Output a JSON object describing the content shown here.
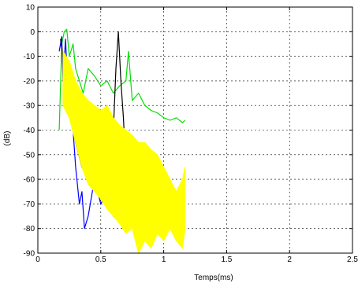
{
  "chart_data": {
    "type": "line",
    "title": "",
    "xlabel": "Temps(ms)",
    "ylabel": "(dB)",
    "xlim": [
      0,
      2.5
    ],
    "ylim": [
      -90,
      10
    ],
    "grid": true,
    "grid_style": "dotted",
    "x_ticks": [
      0,
      0.5,
      1,
      1.5,
      2,
      2.5
    ],
    "x_tick_labels": [
      "0",
      "0.5",
      "1",
      "1.5",
      "2",
      "2.5"
    ],
    "y_ticks": [
      10,
      0,
      -10,
      -20,
      -30,
      -40,
      -50,
      -60,
      -70,
      -80,
      -90
    ],
    "y_tick_labels": [
      "10",
      "0",
      "-10",
      "-20",
      "-30",
      "-40",
      "-50",
      "-60",
      "-70",
      "-80",
      "-90"
    ],
    "series": [
      {
        "color": "#00e000",
        "x": [
          0.17,
          0.19,
          0.21,
          0.23,
          0.25,
          0.28,
          0.3,
          0.33,
          0.36,
          0.4,
          0.45,
          0.5,
          0.55,
          0.6,
          0.65,
          0.7,
          0.72,
          0.75,
          0.8,
          0.85,
          0.9,
          0.95,
          1.0,
          1.05,
          1.1,
          1.15,
          1.17
        ],
        "y": [
          -40,
          -5,
          0,
          1,
          -10,
          -5,
          -15,
          -20,
          -25,
          -15,
          -18,
          -22,
          -20,
          -25,
          -22,
          -20,
          -8,
          -28,
          -25,
          -30,
          -32,
          -33,
          -35,
          -36,
          -35,
          -37,
          -36
        ]
      },
      {
        "color": "#0000ff",
        "x": [
          0.17,
          0.19,
          0.2,
          0.22,
          0.24,
          0.26,
          0.28,
          0.3,
          0.33,
          0.35,
          0.37,
          0.4,
          0.45,
          0.5,
          0.55,
          0.6,
          0.65,
          0.7,
          0.75,
          0.8,
          0.85,
          0.9,
          0.95,
          1.0,
          1.05,
          1.1
        ],
        "y": [
          -8,
          -2,
          -20,
          -3,
          -25,
          -15,
          -40,
          -55,
          -70,
          -65,
          -80,
          -75,
          -60,
          -70,
          -65,
          -75,
          -60,
          -80,
          -70,
          -65,
          -75,
          -70,
          -72,
          -68,
          -75,
          -70
        ]
      },
      {
        "color": "#000000",
        "x": [
          0.18,
          0.2,
          0.22,
          0.25,
          0.3,
          0.35,
          0.4,
          0.45,
          0.5,
          0.55,
          0.6,
          0.62,
          0.64,
          0.66,
          0.68,
          0.7,
          0.75,
          0.8,
          0.85,
          0.9,
          0.95,
          1.0,
          1.05,
          1.1,
          1.15
        ],
        "y": [
          -3,
          -10,
          -20,
          -30,
          -45,
          -55,
          -60,
          -50,
          -45,
          -30,
          -40,
          -15,
          0,
          -20,
          -35,
          -55,
          -65,
          -72,
          -80,
          -85,
          -75,
          -70,
          -78,
          -82,
          -85
        ]
      },
      {
        "color": "#ffff00",
        "x": [
          0.2,
          0.25,
          0.3,
          0.35,
          0.4,
          0.45,
          0.5,
          0.55,
          0.6,
          0.65,
          0.7,
          0.75,
          0.8,
          0.85,
          0.9,
          0.95,
          1.0,
          1.05,
          1.1,
          1.15,
          1.17
        ],
        "y": [
          -8,
          -12,
          -20,
          -25,
          -28,
          -30,
          -32,
          -30,
          -35,
          -38,
          -40,
          -42,
          -45,
          -45,
          -48,
          -50,
          -55,
          -60,
          -65,
          -60,
          -55
        ],
        "y_low": [
          -30,
          -35,
          -45,
          -55,
          -62,
          -65,
          -68,
          -72,
          -75,
          -78,
          -82,
          -80,
          -90,
          -85,
          -88,
          -82,
          -85,
          -80,
          -85,
          -88,
          -80
        ]
      }
    ]
  }
}
